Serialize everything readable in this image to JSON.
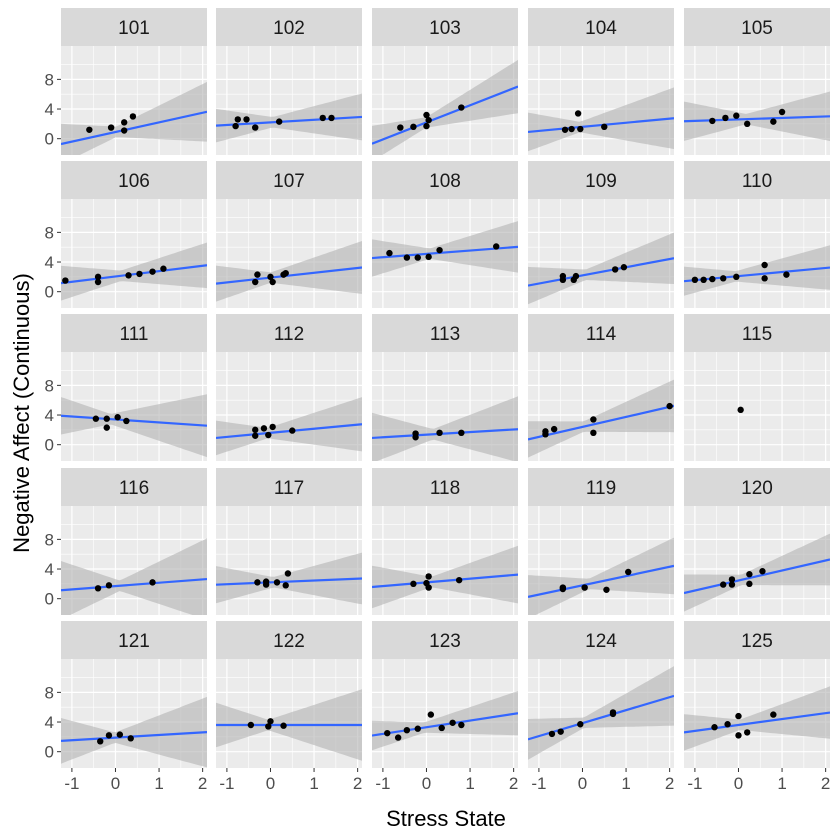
{
  "chart_data": {
    "type": "scatter",
    "xlabel": "Stress State",
    "ylabel": "Negative Affect (Continuous)",
    "xlim": [
      -1.25,
      2.1
    ],
    "ylim": [
      -2.2,
      12.5
    ],
    "x_ticks": [
      -1,
      0,
      1,
      2
    ],
    "y_ticks": [
      0,
      4,
      8
    ],
    "grid": true,
    "legend": "none",
    "colors": {
      "panel_bg": "#ebebeb",
      "strip_bg": "#d9d9d9",
      "grid_major": "#ffffff",
      "points": "#000000",
      "fit_line": "#3366ff",
      "confidence_band": "#b3b3b3"
    },
    "facets": [
      {
        "id": "101",
        "points": [
          [
            -0.6,
            1.2
          ],
          [
            -0.1,
            1.5
          ],
          [
            0.2,
            1.1
          ],
          [
            0.2,
            2.2
          ],
          [
            0.4,
            3.0
          ]
        ],
        "fit": [
          0.9,
          1.3
        ]
      },
      {
        "id": "102",
        "points": [
          [
            -0.8,
            1.7
          ],
          [
            -0.75,
            2.6
          ],
          [
            -0.55,
            2.6
          ],
          [
            -0.35,
            1.5
          ],
          [
            0.2,
            2.3
          ],
          [
            1.2,
            2.8
          ],
          [
            1.4,
            2.8
          ]
        ],
        "fit": [
          2.2,
          0.35
        ]
      },
      {
        "id": "103",
        "points": [
          [
            -0.6,
            1.5
          ],
          [
            -0.3,
            1.6
          ],
          [
            0.0,
            1.7
          ],
          [
            0.05,
            2.5
          ],
          [
            0.0,
            3.2
          ],
          [
            0.8,
            4.2
          ]
        ],
        "fit": [
          2.2,
          2.3
        ]
      },
      {
        "id": "104",
        "points": [
          [
            -0.4,
            1.2
          ],
          [
            -0.25,
            1.3
          ],
          [
            -0.1,
            3.4
          ],
          [
            -0.05,
            1.3
          ],
          [
            0.5,
            1.6
          ]
        ],
        "fit": [
          1.6,
          0.55
        ]
      },
      {
        "id": "105",
        "points": [
          [
            -0.6,
            2.4
          ],
          [
            -0.3,
            2.8
          ],
          [
            -0.05,
            3.1
          ],
          [
            0.2,
            2.0
          ],
          [
            0.8,
            2.3
          ],
          [
            1.0,
            3.6
          ]
        ],
        "fit": [
          2.6,
          0.2
        ]
      },
      {
        "id": "106",
        "points": [
          [
            -1.15,
            1.5
          ],
          [
            -0.4,
            1.3
          ],
          [
            -0.4,
            2.0
          ],
          [
            0.3,
            2.2
          ],
          [
            0.55,
            2.4
          ],
          [
            0.85,
            2.7
          ],
          [
            1.1,
            3.1
          ]
        ],
        "fit": [
          2.05,
          0.72
        ]
      },
      {
        "id": "107",
        "points": [
          [
            -0.35,
            1.3
          ],
          [
            -0.3,
            2.3
          ],
          [
            0.0,
            2.0
          ],
          [
            0.05,
            1.3
          ],
          [
            0.3,
            2.3
          ],
          [
            0.35,
            2.5
          ]
        ],
        "fit": [
          1.9,
          0.65
        ]
      },
      {
        "id": "108",
        "points": [
          [
            -0.85,
            5.2
          ],
          [
            -0.45,
            4.6
          ],
          [
            -0.2,
            4.6
          ],
          [
            0.05,
            4.7
          ],
          [
            0.3,
            5.6
          ],
          [
            1.6,
            6.1
          ]
        ],
        "fit": [
          5.1,
          0.45
        ]
      },
      {
        "id": "109",
        "points": [
          [
            -0.45,
            1.6
          ],
          [
            -0.45,
            2.1
          ],
          [
            -0.2,
            1.6
          ],
          [
            -0.15,
            2.1
          ],
          [
            0.75,
            3.0
          ],
          [
            0.95,
            3.3
          ]
        ],
        "fit": [
          2.2,
          1.1
        ]
      },
      {
        "id": "110",
        "points": [
          [
            -1.0,
            1.6
          ],
          [
            -0.8,
            1.6
          ],
          [
            -0.6,
            1.7
          ],
          [
            -0.35,
            1.8
          ],
          [
            -0.05,
            2.0
          ],
          [
            0.6,
            1.8
          ],
          [
            0.6,
            3.6
          ],
          [
            1.1,
            2.3
          ]
        ],
        "fit": [
          2.1,
          0.55
        ]
      },
      {
        "id": "111",
        "points": [
          [
            -0.45,
            3.5
          ],
          [
            -0.2,
            3.5
          ],
          [
            -0.2,
            2.3
          ],
          [
            0.05,
            3.7
          ],
          [
            0.25,
            3.2
          ]
        ],
        "fit": [
          3.4,
          -0.4
        ]
      },
      {
        "id": "112",
        "points": [
          [
            -0.35,
            1.2
          ],
          [
            -0.35,
            2.0
          ],
          [
            -0.15,
            2.2
          ],
          [
            -0.05,
            1.3
          ],
          [
            0.05,
            2.4
          ],
          [
            0.5,
            1.9
          ]
        ],
        "fit": [
          1.6,
          0.55
        ]
      },
      {
        "id": "113",
        "points": [
          [
            -0.25,
            1.0
          ],
          [
            -0.25,
            1.5
          ],
          [
            0.3,
            1.6
          ],
          [
            0.8,
            1.6
          ]
        ],
        "fit": [
          1.35,
          0.35
        ]
      },
      {
        "id": "114",
        "points": [
          [
            -0.85,
            1.4
          ],
          [
            -0.85,
            1.8
          ],
          [
            -0.65,
            2.1
          ],
          [
            0.25,
            3.4
          ],
          [
            0.25,
            1.6
          ],
          [
            2.0,
            5.2
          ]
        ],
        "fit": [
          2.4,
          1.35
        ]
      },
      {
        "id": "115",
        "points": [
          [
            0.05,
            4.7
          ]
        ],
        "fit": null
      },
      {
        "id": "116",
        "points": [
          [
            -0.4,
            1.4
          ],
          [
            -0.15,
            1.8
          ],
          [
            0.85,
            2.2
          ]
        ],
        "fit": [
          1.7,
          0.45
        ]
      },
      {
        "id": "117",
        "points": [
          [
            -0.3,
            2.2
          ],
          [
            -0.1,
            2.3
          ],
          [
            -0.1,
            1.9
          ],
          [
            0.15,
            2.2
          ],
          [
            0.35,
            1.8
          ],
          [
            0.4,
            3.4
          ]
        ],
        "fit": [
          2.2,
          0.25
        ]
      },
      {
        "id": "118",
        "points": [
          [
            -0.3,
            2.0
          ],
          [
            0.0,
            2.1
          ],
          [
            0.05,
            1.5
          ],
          [
            0.05,
            3.0
          ],
          [
            0.75,
            2.5
          ]
        ],
        "fit": [
          2.2,
          0.5
        ]
      },
      {
        "id": "119",
        "points": [
          [
            -0.45,
            1.5
          ],
          [
            -0.45,
            1.3
          ],
          [
            0.05,
            1.5
          ],
          [
            0.55,
            1.2
          ],
          [
            1.05,
            3.6
          ]
        ],
        "fit": [
          1.8,
          1.25
        ]
      },
      {
        "id": "120",
        "points": [
          [
            -0.35,
            1.9
          ],
          [
            -0.15,
            1.9
          ],
          [
            -0.15,
            2.6
          ],
          [
            0.25,
            3.3
          ],
          [
            0.25,
            2.0
          ],
          [
            0.55,
            3.7
          ]
        ],
        "fit": [
          2.45,
          1.35
        ]
      },
      {
        "id": "121",
        "points": [
          [
            -0.35,
            1.4
          ],
          [
            -0.15,
            2.2
          ],
          [
            0.1,
            2.3
          ],
          [
            0.35,
            1.8
          ]
        ],
        "fit": [
          1.9,
          0.35
        ]
      },
      {
        "id": "122",
        "points": [
          [
            -0.45,
            3.6
          ],
          [
            -0.05,
            3.4
          ],
          [
            0.0,
            4.1
          ],
          [
            0.3,
            3.5
          ]
        ],
        "fit": [
          3.6,
          0.0
        ]
      },
      {
        "id": "123",
        "points": [
          [
            -0.9,
            2.5
          ],
          [
            -0.65,
            1.9
          ],
          [
            -0.45,
            2.9
          ],
          [
            -0.2,
            3.1
          ],
          [
            0.1,
            5.0
          ],
          [
            0.35,
            3.2
          ],
          [
            0.6,
            3.9
          ],
          [
            0.8,
            3.6
          ]
        ],
        "fit": [
          3.3,
          0.9
        ]
      },
      {
        "id": "124",
        "points": [
          [
            -0.7,
            2.4
          ],
          [
            -0.5,
            2.7
          ],
          [
            -0.05,
            3.7
          ],
          [
            0.7,
            5.1
          ],
          [
            0.7,
            5.3
          ]
        ],
        "fit": [
          3.85,
          1.75
        ]
      },
      {
        "id": "125",
        "points": [
          [
            -0.55,
            3.3
          ],
          [
            -0.25,
            3.7
          ],
          [
            0.0,
            2.2
          ],
          [
            0.0,
            4.8
          ],
          [
            0.2,
            2.6
          ],
          [
            0.8,
            5.0
          ]
        ],
        "fit": [
          3.6,
          0.8
        ]
      }
    ]
  }
}
